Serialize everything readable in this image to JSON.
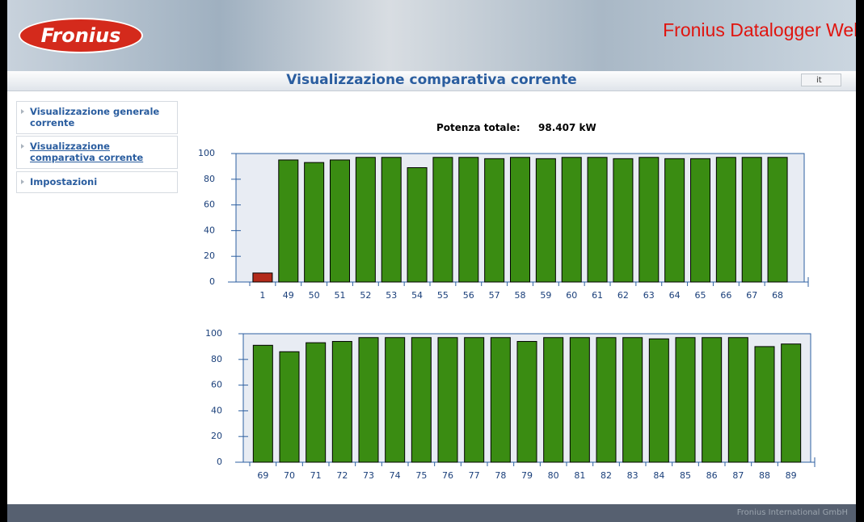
{
  "header": {
    "logo": "Fronius",
    "brand": "Fronius Datalogger Web",
    "page_title": "Visualizzazione comparativa corrente",
    "language": "it"
  },
  "nav": [
    "Visualizzazione generale corrente",
    "Visualizzazione comparativa corrente",
    "Impostazioni"
  ],
  "summary": {
    "label": "Potenza totale:",
    "value": "98.407 kW"
  },
  "footer": "Fronius International GmbH",
  "chart_data": [
    {
      "type": "bar",
      "categories": [
        "1",
        "49",
        "50",
        "51",
        "52",
        "53",
        "54",
        "55",
        "56",
        "57",
        "58",
        "59",
        "60",
        "61",
        "62",
        "63",
        "64",
        "65",
        "66",
        "67",
        "68"
      ],
      "values": [
        7,
        95,
        93,
        95,
        97,
        97,
        89,
        97,
        97,
        96,
        97,
        96,
        97,
        97,
        96,
        97,
        96,
        96,
        97,
        97,
        97
      ],
      "colors": [
        "#b32a1a",
        "#3a8c12",
        "#3a8c12",
        "#3a8c12",
        "#3a8c12",
        "#3a8c12",
        "#3a8c12",
        "#3a8c12",
        "#3a8c12",
        "#3a8c12",
        "#3a8c12",
        "#3a8c12",
        "#3a8c12",
        "#3a8c12",
        "#3a8c12",
        "#3a8c12",
        "#3a8c12",
        "#3a8c12",
        "#3a8c12",
        "#3a8c12",
        "#3a8c12"
      ],
      "ylim": [
        0,
        100
      ],
      "yticks": [
        0,
        20,
        40,
        60,
        80,
        100
      ]
    },
    {
      "type": "bar",
      "categories": [
        "69",
        "70",
        "71",
        "72",
        "73",
        "74",
        "75",
        "76",
        "77",
        "78",
        "79",
        "80",
        "81",
        "82",
        "83",
        "84",
        "85",
        "86",
        "87",
        "88",
        "89"
      ],
      "values": [
        91,
        86,
        93,
        94,
        97,
        97,
        97,
        97,
        97,
        97,
        94,
        97,
        97,
        97,
        97,
        96,
        97,
        97,
        97,
        90,
        92
      ],
      "colors": [
        "#3a8c12",
        "#3a8c12",
        "#3a8c12",
        "#3a8c12",
        "#3a8c12",
        "#3a8c12",
        "#3a8c12",
        "#3a8c12",
        "#3a8c12",
        "#3a8c12",
        "#3a8c12",
        "#3a8c12",
        "#3a8c12",
        "#3a8c12",
        "#3a8c12",
        "#3a8c12",
        "#3a8c12",
        "#3a8c12",
        "#3a8c12",
        "#3a8c12",
        "#3a8c12"
      ],
      "ylim": [
        0,
        100
      ],
      "yticks": [
        0,
        20,
        40,
        60,
        80,
        100
      ]
    }
  ]
}
